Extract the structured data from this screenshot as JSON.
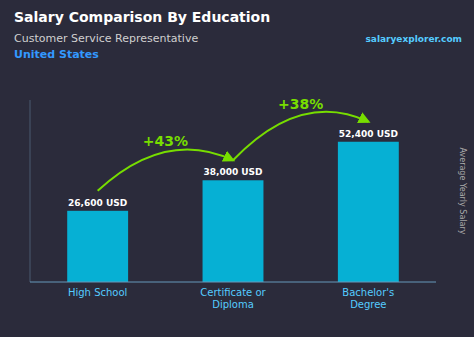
{
  "chart_data": {
    "type": "bar",
    "title": "Salary Comparison By Education",
    "subtitle": [
      "Customer Service Representative",
      "United States"
    ],
    "source": "salaryexplorer.com",
    "ylabel": "Average Yearly Salary",
    "categories": [
      "High School",
      "Certificate or\nDiploma",
      "Bachelor's\nDegree"
    ],
    "values": [
      26600,
      38000,
      52400
    ],
    "value_labels": [
      "26,600 USD",
      "38,000 USD",
      "52,400 USD"
    ],
    "data_labels": true,
    "annotations": [
      "+43%",
      "+38%"
    ],
    "color": "#00c8f0",
    "ylim": [
      0,
      68000
    ],
    "yticks": [],
    "tick_labels": "x",
    "grid": false
  }
}
